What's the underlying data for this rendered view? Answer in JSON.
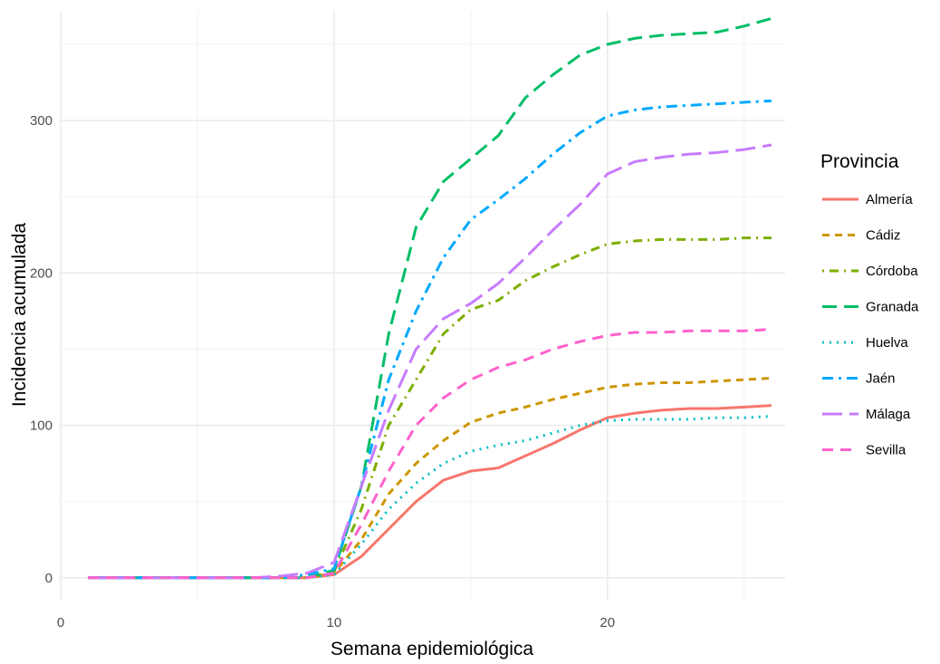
{
  "chart_data": {
    "type": "line",
    "xlabel": "Semana epidemiológica",
    "ylabel": "Incidencia acumulada",
    "xlim": [
      0,
      26.5
    ],
    "ylim": [
      -15,
      372
    ],
    "x_ticks": [
      0,
      10,
      20
    ],
    "x_minor_ticks": [
      5,
      15,
      25
    ],
    "y_ticks": [
      0,
      100,
      200,
      300
    ],
    "y_minor_ticks": [
      50,
      150,
      250,
      350
    ],
    "grid": true,
    "legend": {
      "title": "Provincia",
      "position": "right"
    },
    "x": [
      1,
      2,
      3,
      4,
      5,
      6,
      7,
      8,
      9,
      10,
      11,
      12,
      13,
      14,
      15,
      16,
      17,
      18,
      19,
      20,
      21,
      22,
      23,
      24,
      25,
      26
    ],
    "series": [
      {
        "name": "Almería",
        "color": "#F8766D",
        "dash": "solid",
        "values": [
          0,
          0,
          0,
          0,
          0,
          0,
          0,
          0,
          0,
          2,
          14,
          32,
          50,
          64,
          70,
          72,
          80,
          88,
          97,
          105,
          108,
          110,
          111,
          111,
          112,
          113
        ]
      },
      {
        "name": "Cádiz",
        "color": "#CD9600",
        "dash": "dashed",
        "values": [
          0,
          0,
          0,
          0,
          0,
          0,
          0,
          0,
          0,
          3,
          25,
          55,
          75,
          90,
          102,
          108,
          112,
          117,
          121,
          125,
          127,
          128,
          128,
          129,
          130,
          131
        ]
      },
      {
        "name": "Córdoba",
        "color": "#7CAE00",
        "dash": "dotdash",
        "values": [
          0,
          0,
          0,
          0,
          0,
          0,
          0,
          0,
          0,
          4,
          45,
          100,
          130,
          160,
          176,
          182,
          195,
          204,
          212,
          219,
          221,
          222,
          222,
          222,
          223,
          223
        ]
      },
      {
        "name": "Granada",
        "color": "#00BE67",
        "dash": "longdash",
        "values": [
          0,
          0,
          0,
          0,
          0,
          0,
          0,
          0,
          0,
          5,
          60,
          160,
          230,
          260,
          275,
          290,
          315,
          330,
          343,
          350,
          354,
          356,
          357,
          358,
          362,
          367
        ]
      },
      {
        "name": "Huelva",
        "color": "#00BFC4",
        "dash": "dotted",
        "values": [
          0,
          0,
          0,
          0,
          0,
          0,
          0,
          0,
          0,
          2,
          22,
          45,
          62,
          75,
          83,
          87,
          90,
          95,
          100,
          103,
          104,
          104,
          104,
          105,
          105,
          106
        ]
      },
      {
        "name": "Jaén",
        "color": "#00A9FF",
        "dash": "twodash",
        "values": [
          0,
          0,
          0,
          0,
          0,
          0,
          0,
          0,
          2,
          6,
          60,
          130,
          175,
          210,
          235,
          248,
          262,
          278,
          292,
          303,
          307,
          309,
          310,
          311,
          312,
          313
        ]
      },
      {
        "name": "Málaga",
        "color": "#C77CFF",
        "dash": "longdash2",
        "values": [
          0,
          0,
          0,
          0,
          0,
          0,
          0,
          1,
          3,
          10,
          60,
          110,
          150,
          170,
          180,
          193,
          210,
          228,
          245,
          265,
          273,
          276,
          278,
          279,
          281,
          284
        ]
      },
      {
        "name": "Sevilla",
        "color": "#FF61CC",
        "dash": "dashed2",
        "values": [
          0,
          0,
          0,
          0,
          0,
          0,
          0,
          0,
          0,
          3,
          35,
          70,
          100,
          118,
          130,
          138,
          143,
          150,
          155,
          159,
          161,
          161,
          162,
          162,
          162,
          163
        ]
      }
    ]
  }
}
